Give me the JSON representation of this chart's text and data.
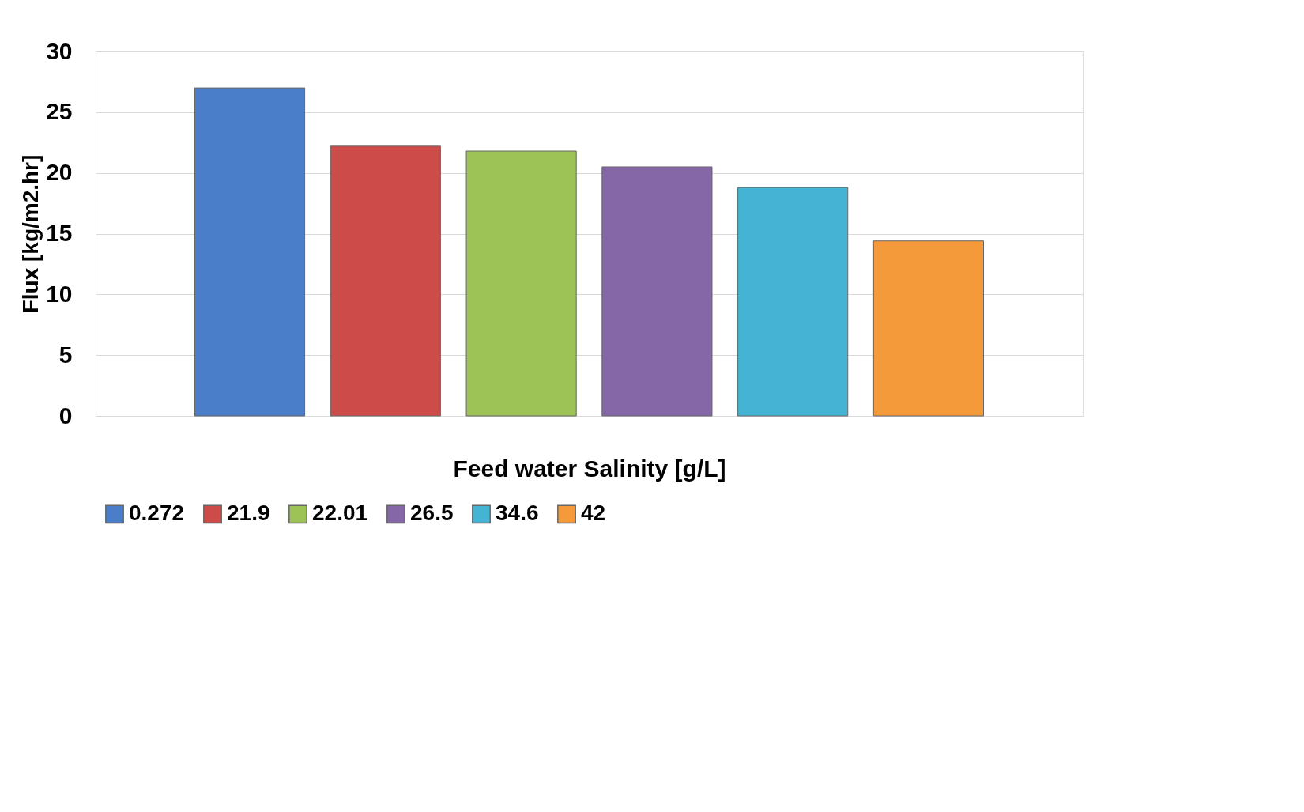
{
  "chart_data": {
    "type": "bar",
    "xlabel": "Feed water Salinity [g/L]",
    "ylabel": "Flux [kg/m2.hr]",
    "categories": [
      null
    ],
    "series": [
      {
        "name": "0.272",
        "color": "#4a7ec8",
        "values": [
          27.0
        ]
      },
      {
        "name": "21.9",
        "color": "#cd4b48",
        "values": [
          22.2
        ]
      },
      {
        "name": "22.01",
        "color": "#9dc256",
        "values": [
          21.8
        ]
      },
      {
        "name": "26.5",
        "color": "#8567a8",
        "values": [
          20.5
        ]
      },
      {
        "name": "34.6",
        "color": "#45b3d3",
        "values": [
          18.8
        ]
      },
      {
        "name": "42",
        "color": "#f59a3a",
        "values": [
          14.4
        ]
      }
    ],
    "ylim": [
      0,
      30
    ],
    "yticks": [
      0,
      5,
      10,
      15,
      20,
      25,
      30
    ],
    "grid": "y",
    "legend": "bottom"
  }
}
